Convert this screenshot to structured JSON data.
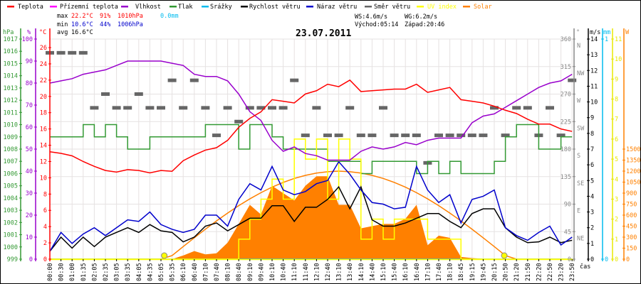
{
  "legend": [
    {
      "label": "Teplota",
      "color": "#ff0000"
    },
    {
      "label": "Přízemní teplota",
      "color": "#ff00ff"
    },
    {
      "label": "Vlhkost",
      "color": "#9900cc"
    },
    {
      "label": "Tlak",
      "color": "#339933"
    },
    {
      "label": "Srážky",
      "color": "#00bbee"
    },
    {
      "label": "Rychlost větru",
      "color": "#000000"
    },
    {
      "label": "Náraz větru",
      "color": "#0000cc"
    },
    {
      "label": "Směr větru",
      "color": "#666666"
    },
    {
      "label": "UV index",
      "color": "#ffff00"
    },
    {
      "label": "Solar",
      "color": "#ff8000"
    }
  ],
  "stats": {
    "max_label": "max",
    "max_temp": "22.2°C",
    "max_hum": "91%",
    "max_press": "1010hPa",
    "rain": "0.0mm",
    "min_label": "min",
    "min_temp": "10.6°C",
    "min_hum": "44%",
    "min_press": "1006hPa",
    "avg_label": "avg",
    "avg_temp": "16.6°C",
    "ws": "WS:4.6m/s",
    "wg": "WG:6.2m/s",
    "sunrise": "Východ:05:14",
    "sunset": "Západ:20:46"
  },
  "chart_data": {
    "type": "line",
    "title": "23.07.2011",
    "xlabel": "čas",
    "x": [
      "00:00",
      "00:30",
      "01:00",
      "01:35",
      "02:05",
      "02:35",
      "03:05",
      "03:35",
      "04:05",
      "04:35",
      "05:05",
      "05:35",
      "06:10",
      "06:40",
      "07:10",
      "07:40",
      "08:10",
      "08:40",
      "09:10",
      "09:40",
      "10:10",
      "10:40",
      "11:10",
      "11:40",
      "12:10",
      "12:40",
      "13:10",
      "13:40",
      "14:10",
      "14:40",
      "15:10",
      "15:40",
      "16:10",
      "16:40",
      "17:10",
      "17:40",
      "18:10",
      "18:45",
      "19:15",
      "19:45",
      "20:15",
      "20:50",
      "21:20",
      "21:50",
      "22:20",
      "22:50",
      "23:20",
      "23:50"
    ],
    "axes": {
      "pressure": {
        "unit": "hPa",
        "range": [
          999,
          1017
        ],
        "ticks": [
          999,
          1000,
          1001,
          1002,
          1003,
          1004,
          1005,
          1006,
          1007,
          1008,
          1009,
          1010,
          1011,
          1012,
          1013,
          1014,
          1015,
          1016,
          1017
        ]
      },
      "humidity": {
        "unit": "%",
        "range": [
          0,
          100
        ],
        "ticks": [
          0,
          10,
          20,
          30,
          40,
          50,
          60,
          70,
          80,
          90,
          100
        ]
      },
      "temperature": {
        "unit": "°C",
        "range": [
          0,
          27
        ],
        "ticks": [
          0,
          2,
          4,
          6,
          8,
          10,
          12,
          14,
          16,
          18,
          20,
          22,
          24,
          26
        ]
      },
      "direction": {
        "unit": "°",
        "range": [
          0,
          360
        ],
        "ticks": [
          0,
          45,
          90,
          135,
          180,
          225,
          270,
          315,
          360
        ],
        "names": [
          "",
          "NE",
          "E",
          "SE",
          "S",
          "SW",
          "W",
          "NW",
          "N"
        ]
      },
      "wind": {
        "unit": "m/s",
        "range": [
          0,
          14
        ],
        "ticks": [
          0,
          1,
          2,
          3,
          4,
          5,
          6,
          7,
          8,
          9,
          10,
          11,
          12,
          13,
          14
        ]
      },
      "rain": {
        "unit": "mm",
        "range": [
          0,
          1
        ],
        "ticks": [
          0,
          1
        ]
      },
      "uv": {
        "unit": "",
        "range": [
          0,
          11
        ],
        "ticks": [
          0,
          1,
          2,
          3,
          4,
          5,
          6,
          7,
          8,
          9,
          10,
          11
        ]
      },
      "solar": {
        "unit": "W",
        "range": [
          0,
          3000
        ],
        "ticks": [
          0,
          150,
          300,
          450,
          600,
          750,
          900,
          1050,
          1200,
          1350,
          1500
        ]
      }
    },
    "series": [
      {
        "name": "Teplota",
        "axis": "temperature",
        "color": "#ff0000",
        "values": [
          13.2,
          13.0,
          12.7,
          12.0,
          11.4,
          10.9,
          10.7,
          11.0,
          10.9,
          10.6,
          10.9,
          10.8,
          12.1,
          12.8,
          13.4,
          13.7,
          14.6,
          16.2,
          17.3,
          18.1,
          19.6,
          19.4,
          19.2,
          20.3,
          20.7,
          21.5,
          21.2,
          22.0,
          20.6,
          20.7,
          20.8,
          20.9,
          20.9,
          21.5,
          20.5,
          20.8,
          21.1,
          19.6,
          19.4,
          19.2,
          18.8,
          18.3,
          17.9,
          17.2,
          16.6,
          16.6,
          16.0,
          15.7
        ]
      },
      {
        "name": "Vlhkost",
        "axis": "humidity",
        "color": "#9900cc",
        "values": [
          80,
          81,
          82,
          84,
          85,
          86,
          88,
          90,
          90,
          90,
          90,
          89,
          88,
          84,
          83,
          83,
          81,
          75,
          67,
          63,
          54,
          49,
          51,
          48,
          47,
          45,
          45,
          45,
          49,
          51,
          50,
          51,
          53,
          52,
          54,
          55,
          55,
          55,
          62,
          65,
          66,
          69,
          72,
          75,
          78,
          80,
          81,
          84
        ]
      },
      {
        "name": "Tlak",
        "axis": "pressure",
        "color": "#339933",
        "values": [
          1009,
          1009,
          1009,
          1010,
          1009,
          1010,
          1009,
          1008,
          1008,
          1009,
          1009,
          1009,
          1009,
          1009,
          1010,
          1010,
          1010,
          1008,
          1010,
          1010,
          1009,
          1008,
          1008,
          1008,
          1008,
          1007,
          1007,
          1007,
          1006,
          1007,
          1007,
          1007,
          1007,
          1006,
          1007,
          1006,
          1007,
          1006,
          1006,
          1006,
          1007,
          1009,
          1010,
          1010,
          1008,
          1008,
          1009,
          1009
        ]
      },
      {
        "name": "Srážky",
        "axis": "rain",
        "color": "#00bbee",
        "values": [
          0,
          0,
          0,
          0,
          0,
          0,
          0,
          0,
          0,
          0,
          0,
          0,
          0,
          0,
          0,
          0,
          0,
          0,
          0,
          0,
          0,
          0,
          0,
          0,
          0,
          0,
          0,
          0,
          0,
          0,
          0,
          0,
          0,
          0,
          0,
          0,
          0,
          0,
          0,
          0,
          0,
          0,
          0,
          0,
          0,
          0,
          0,
          0
        ]
      },
      {
        "name": "Rychlost větru",
        "axis": "wind",
        "color": "#000000",
        "values": [
          0.5,
          1.4,
          0.7,
          1.4,
          0.8,
          1.4,
          1.7,
          2.0,
          1.7,
          2.2,
          1.8,
          1.7,
          1.1,
          1.4,
          2.1,
          2.3,
          1.8,
          2.2,
          2.6,
          2.6,
          3.4,
          3.4,
          2.4,
          3.3,
          3.3,
          3.8,
          4.6,
          3.2,
          4.6,
          2.5,
          2.1,
          2.1,
          2.3,
          2.6,
          2.9,
          2.9,
          2.4,
          2.0,
          2.9,
          3.2,
          3.2,
          2.0,
          1.4,
          1.05,
          1.1,
          1.4,
          1.05,
          1.2
        ]
      },
      {
        "name": "Náraz větru",
        "axis": "wind",
        "color": "#0000cc",
        "values": [
          0.5,
          1.7,
          1.0,
          1.6,
          2.0,
          1.5,
          2.0,
          2.5,
          2.4,
          3.0,
          2.2,
          1.9,
          1.7,
          1.9,
          2.8,
          2.8,
          2.1,
          3.8,
          4.8,
          4.4,
          5.9,
          4.4,
          4.1,
          4.3,
          4.8,
          5.0,
          6.2,
          5.4,
          4.4,
          3.6,
          3.5,
          3.2,
          3.3,
          5.9,
          4.4,
          3.6,
          4.1,
          2.3,
          3.8,
          4.0,
          4.4,
          2.0,
          1.5,
          1.2,
          1.7,
          2.1,
          0.9,
          1.4
        ]
      },
      {
        "name": "Směr větru",
        "axis": "direction",
        "color": "#666666",
        "values": [
          337.5,
          337.5,
          337.5,
          337.5,
          247.5,
          270,
          247.5,
          247.5,
          270,
          247.5,
          247.5,
          292.5,
          247.5,
          292.5,
          247.5,
          202.5,
          247.5,
          225,
          247.5,
          247.5,
          247.5,
          247.5,
          292.5,
          202.5,
          247.5,
          202.5,
          202.5,
          247.5,
          202.5,
          202.5,
          247.5,
          202.5,
          202.5,
          202.5,
          157.5,
          202.5,
          202.5,
          202.5,
          202.5,
          202.5,
          247.5,
          202.5,
          247.5,
          247.5,
          202.5,
          247.5,
          202.5,
          292.5
        ]
      },
      {
        "name": "UV index",
        "axis": "uv",
        "color": "#ffff00",
        "values": [
          0,
          0,
          0,
          0,
          0,
          0,
          0,
          0,
          0,
          0,
          0,
          0,
          0,
          0,
          0,
          0,
          0,
          1,
          2,
          3,
          4,
          3,
          6,
          5,
          6,
          3,
          6,
          5,
          1,
          2,
          1,
          2,
          2,
          2,
          1,
          1,
          1,
          0,
          0,
          0,
          0,
          0,
          0,
          0,
          0,
          0,
          0,
          0
        ]
      },
      {
        "name": "Solar",
        "axis": "solar",
        "color": "#ff8000",
        "values": [
          0,
          0,
          0,
          0,
          0,
          0,
          0,
          0,
          0,
          0,
          0,
          0,
          50,
          110,
          65,
          80,
          225,
          480,
          740,
          610,
          1000,
          900,
          800,
          1000,
          1130,
          1130,
          740,
          740,
          420,
          450,
          480,
          480,
          550,
          740,
          190,
          320,
          290,
          30,
          15,
          5,
          0,
          0,
          0,
          0,
          0,
          0,
          0,
          0
        ]
      },
      {
        "name": "Solar (teoretický)",
        "axis": "solar",
        "color": "#ff8000",
        "values": [
          0,
          0,
          0,
          0,
          0,
          0,
          0,
          0,
          0,
          0,
          0,
          49,
          171,
          291,
          408,
          521,
          628,
          729,
          822,
          906,
          982,
          1046,
          1100,
          1142,
          1173,
          1191,
          1200,
          1191,
          1173,
          1142,
          1100,
          1046,
          982,
          906,
          822,
          729,
          628,
          521,
          408,
          291,
          171,
          49,
          0,
          0,
          0,
          0,
          0,
          0
        ]
      }
    ],
    "sun_markers": {
      "sunrise": "05:14",
      "sunset": "20:46",
      "sunrise_index": 10.3,
      "sunset_index": 40.9
    },
    "grid": true,
    "legend_position": "top"
  }
}
